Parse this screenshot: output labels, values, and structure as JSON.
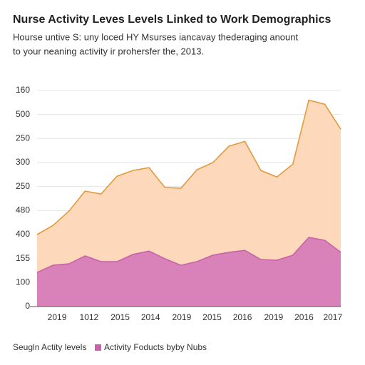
{
  "chart_data": {
    "type": "area",
    "title": "Nurse Activity Leves Levels Linked to Work Demographics",
    "subtitle": [
      "Hourse untive S: uny loced HY Msurses iancavay thederaging anount",
      "to your neaning activity ir prohersfer the, 2013."
    ],
    "x": [
      0,
      1,
      2,
      3,
      4,
      5,
      6,
      7,
      8,
      9,
      10,
      11,
      12,
      13,
      14,
      15,
      16,
      17,
      18,
      19
    ],
    "xlim": [
      0,
      19
    ],
    "xticks": [
      {
        "value": 1.25,
        "label": "2019"
      },
      {
        "value": 3.25,
        "label": "1012"
      },
      {
        "value": 5.2,
        "label": "2015"
      },
      {
        "value": 7.1,
        "label": "2014"
      },
      {
        "value": 9.05,
        "label": "2019"
      },
      {
        "value": 10.95,
        "label": "2015"
      },
      {
        "value": 12.85,
        "label": "2016"
      },
      {
        "value": 14.8,
        "label": "2019"
      },
      {
        "value": 16.7,
        "label": "2016"
      },
      {
        "value": 18.5,
        "label": "2017"
      }
    ],
    "ylim": [
      0,
      9
    ],
    "yticks": [
      0,
      {
        "value": 1,
        "label": "100"
      },
      {
        "value": 2,
        "label": "155"
      },
      {
        "value": 3,
        "label": "400"
      },
      {
        "value": 4,
        "label": "480"
      },
      {
        "value": 5,
        "label": "250"
      },
      {
        "value": 6,
        "label": "300"
      },
      {
        "value": 7,
        "label": "250"
      },
      {
        "value": 8,
        "label": "500"
      },
      {
        "value": 9,
        "label": "160"
      }
    ],
    "grid": true,
    "series": [
      {
        "name": "Seugln Actity levels",
        "color": "#fdd8bb",
        "line_color": "#e29a3c",
        "values": [
          3.0,
          3.38,
          3.98,
          4.81,
          4.69,
          5.43,
          5.67,
          5.79,
          4.96,
          4.93,
          5.7,
          6.0,
          6.68,
          6.88,
          5.67,
          5.4,
          5.93,
          8.6,
          8.43,
          7.39
        ]
      },
      {
        "name": "Activity Foducts byby Nubs",
        "color": "#d982b9",
        "line_color": "#c862a9",
        "values": [
          1.42,
          1.72,
          1.78,
          2.11,
          1.87,
          1.87,
          2.17,
          2.31,
          1.99,
          1.72,
          1.87,
          2.14,
          2.26,
          2.34,
          1.96,
          1.93,
          2.14,
          2.88,
          2.76,
          2.26
        ]
      }
    ]
  }
}
